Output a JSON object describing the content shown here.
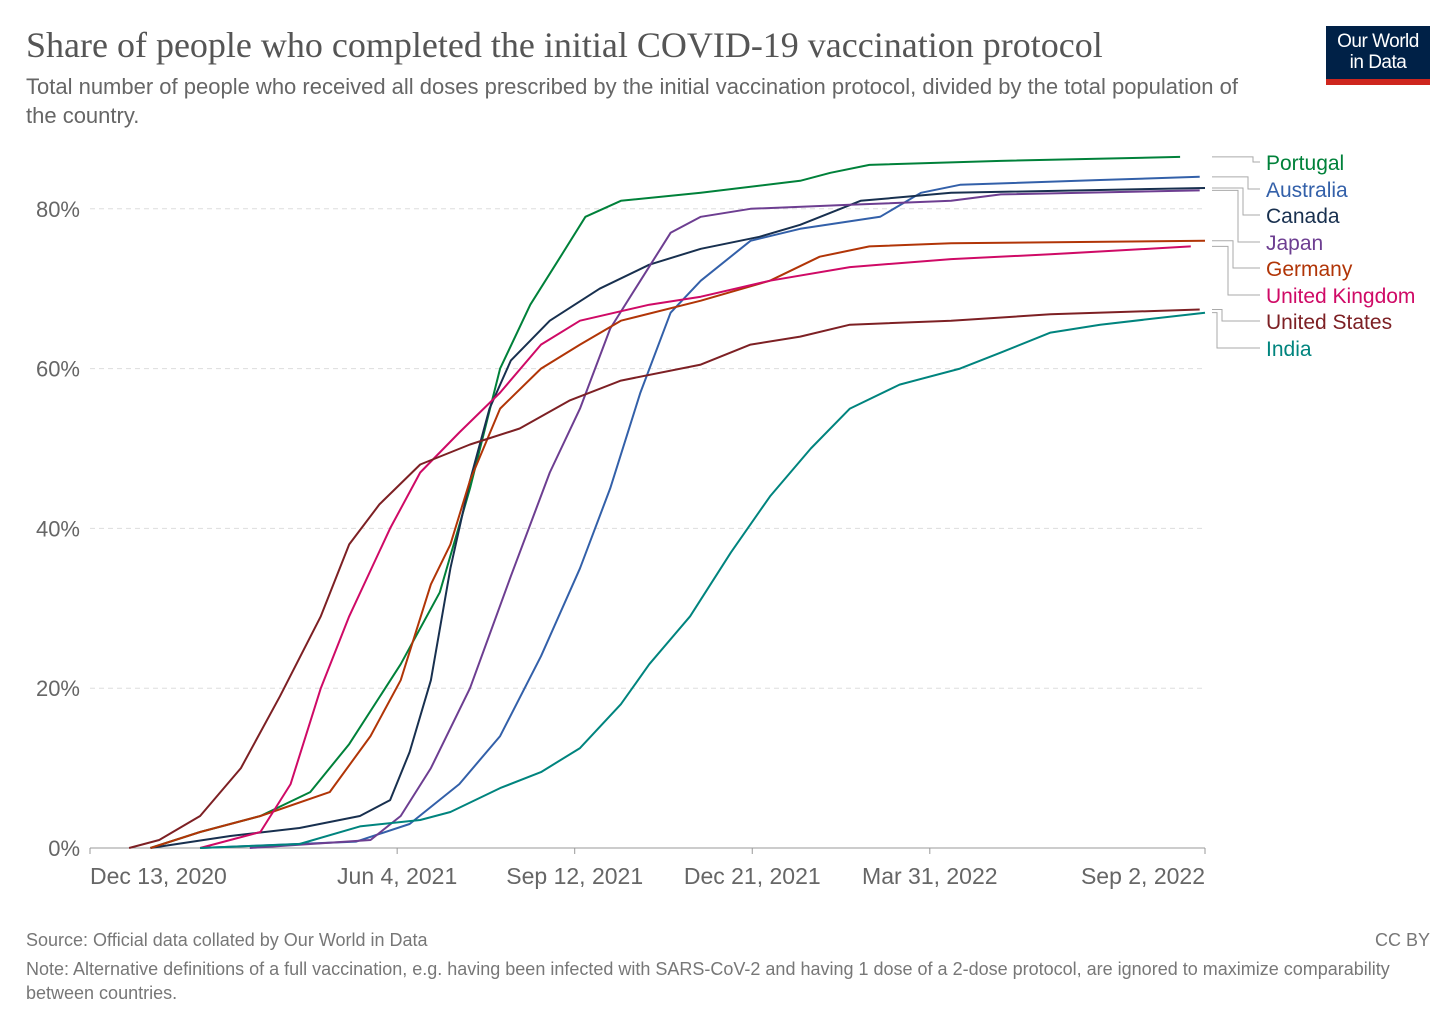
{
  "chart_data": {
    "type": "line",
    "title": "Share of people who completed the initial COVID-19 vaccination protocol",
    "subtitle": "Total number of people who received all doses prescribed by the initial vaccination protocol, divided by the total population of the country.",
    "xlabel": "",
    "ylabel": "",
    "x_unit": "days since Dec 13, 2020",
    "xlim": [
      0,
      628
    ],
    "ylim": [
      0,
      86
    ],
    "grid": true,
    "legend": "right (line-end labels)",
    "x_ticks": [
      {
        "value": 0,
        "label": "Dec 13, 2020"
      },
      {
        "value": 173,
        "label": "Jun 4, 2021"
      },
      {
        "value": 273,
        "label": "Sep 12, 2021"
      },
      {
        "value": 373,
        "label": "Dec 21, 2021"
      },
      {
        "value": 473,
        "label": "Mar 31, 2022"
      },
      {
        "value": 628,
        "label": "Sep 2, 2022"
      }
    ],
    "y_ticks": [
      {
        "value": 0,
        "label": "0%"
      },
      {
        "value": 20,
        "label": "20%"
      },
      {
        "value": 40,
        "label": "40%"
      },
      {
        "value": 60,
        "label": "60%"
      },
      {
        "value": 80,
        "label": "80%"
      }
    ],
    "series": [
      {
        "name": "Portugal",
        "color": "#00813a",
        "label_value": 86.5,
        "points": [
          [
            34,
            0
          ],
          [
            62,
            2
          ],
          [
            96,
            4
          ],
          [
            124,
            7
          ],
          [
            146,
            13
          ],
          [
            175,
            23
          ],
          [
            197,
            32
          ],
          [
            214,
            45
          ],
          [
            231,
            60
          ],
          [
            248,
            68
          ],
          [
            265,
            74
          ],
          [
            279,
            79
          ],
          [
            299,
            81
          ],
          [
            344,
            82
          ],
          [
            400,
            83.5
          ],
          [
            417,
            84.5
          ],
          [
            439,
            85.5
          ],
          [
            513,
            86
          ],
          [
            614,
            86.5
          ]
        ]
      },
      {
        "name": "Australia",
        "color": "#3360a9",
        "label_value": 84,
        "points": [
          [
            62,
            0
          ],
          [
            150,
            0.8
          ],
          [
            180,
            3
          ],
          [
            208,
            8
          ],
          [
            231,
            14
          ],
          [
            254,
            24
          ],
          [
            276,
            35
          ],
          [
            293,
            45
          ],
          [
            310,
            57
          ],
          [
            327,
            67
          ],
          [
            344,
            71
          ],
          [
            372,
            76
          ],
          [
            400,
            77.5
          ],
          [
            445,
            79
          ],
          [
            468,
            82
          ],
          [
            490,
            83
          ],
          [
            569,
            83.6
          ],
          [
            625,
            84
          ]
        ]
      },
      {
        "name": "Canada",
        "color": "#18304f",
        "label_value": 82.6,
        "points": [
          [
            34,
            0
          ],
          [
            79,
            1.5
          ],
          [
            118,
            2.5
          ],
          [
            152,
            4
          ],
          [
            169,
            6
          ],
          [
            180,
            12
          ],
          [
            192,
            21
          ],
          [
            203,
            35
          ],
          [
            214,
            46
          ],
          [
            225,
            55
          ],
          [
            237,
            61
          ],
          [
            259,
            66
          ],
          [
            287,
            70
          ],
          [
            315,
            73
          ],
          [
            344,
            75
          ],
          [
            377,
            76.5
          ],
          [
            400,
            78
          ],
          [
            434,
            81
          ],
          [
            485,
            82
          ],
          [
            628,
            82.6
          ]
        ]
      },
      {
        "name": "Japan",
        "color": "#6d3e91",
        "label_value": 82.3,
        "points": [
          [
            90,
            0
          ],
          [
            158,
            1
          ],
          [
            175,
            4
          ],
          [
            192,
            10
          ],
          [
            214,
            20
          ],
          [
            237,
            34
          ],
          [
            259,
            47
          ],
          [
            276,
            55
          ],
          [
            293,
            65
          ],
          [
            310,
            71
          ],
          [
            327,
            77
          ],
          [
            344,
            79
          ],
          [
            372,
            80
          ],
          [
            428,
            80.5
          ],
          [
            485,
            81
          ],
          [
            513,
            81.8
          ],
          [
            625,
            82.3
          ]
        ]
      },
      {
        "name": "Germany",
        "color": "#b13507",
        "label_value": 76,
        "points": [
          [
            34,
            0
          ],
          [
            62,
            2
          ],
          [
            96,
            4
          ],
          [
            135,
            7
          ],
          [
            158,
            14
          ],
          [
            175,
            21
          ],
          [
            192,
            33
          ],
          [
            203,
            38
          ],
          [
            214,
            46
          ],
          [
            231,
            55
          ],
          [
            254,
            60
          ],
          [
            276,
            63
          ],
          [
            299,
            66
          ],
          [
            344,
            68.5
          ],
          [
            383,
            71
          ],
          [
            411,
            74
          ],
          [
            439,
            75.3
          ],
          [
            485,
            75.7
          ],
          [
            628,
            76
          ]
        ]
      },
      {
        "name": "United Kingdom",
        "color": "#cf0a66",
        "label_value": 75.3,
        "points": [
          [
            62,
            0
          ],
          [
            96,
            2
          ],
          [
            113,
            8
          ],
          [
            130,
            20
          ],
          [
            146,
            29
          ],
          [
            169,
            40
          ],
          [
            186,
            47
          ],
          [
            208,
            52
          ],
          [
            231,
            57
          ],
          [
            254,
            63
          ],
          [
            276,
            66
          ],
          [
            315,
            68
          ],
          [
            344,
            69
          ],
          [
            383,
            71
          ],
          [
            428,
            72.7
          ],
          [
            485,
            73.7
          ],
          [
            541,
            74.3
          ],
          [
            620,
            75.3
          ]
        ]
      },
      {
        "name": "United States",
        "color": "#7d2024",
        "label_value": 67.4,
        "points": [
          [
            22,
            0
          ],
          [
            39,
            1
          ],
          [
            62,
            4
          ],
          [
            85,
            10
          ],
          [
            107,
            19
          ],
          [
            130,
            29
          ],
          [
            146,
            38
          ],
          [
            163,
            43
          ],
          [
            186,
            48
          ],
          [
            214,
            50.5
          ],
          [
            242,
            52.5
          ],
          [
            270,
            56
          ],
          [
            299,
            58.5
          ],
          [
            344,
            60.5
          ],
          [
            372,
            63
          ],
          [
            400,
            64
          ],
          [
            428,
            65.5
          ],
          [
            485,
            66
          ],
          [
            541,
            66.8
          ],
          [
            625,
            67.4
          ]
        ]
      },
      {
        "name": "India",
        "color": "#00847e",
        "label_value": 67,
        "points": [
          [
            62,
            0
          ],
          [
            118,
            0.5
          ],
          [
            152,
            2.7
          ],
          [
            186,
            3.5
          ],
          [
            203,
            4.5
          ],
          [
            231,
            7.5
          ],
          [
            254,
            9.5
          ],
          [
            276,
            12.5
          ],
          [
            299,
            18
          ],
          [
            315,
            23
          ],
          [
            338,
            29
          ],
          [
            361,
            37
          ],
          [
            383,
            44
          ],
          [
            406,
            50
          ],
          [
            428,
            55
          ],
          [
            456,
            58
          ],
          [
            490,
            60
          ],
          [
            513,
            62
          ],
          [
            541,
            64.5
          ],
          [
            569,
            65.5
          ],
          [
            628,
            67
          ]
        ]
      }
    ]
  },
  "logo": {
    "line1": "Our World",
    "line2": "in Data"
  },
  "footer": {
    "source": "Source: Official data collated by Our World in Data",
    "license": "CC BY",
    "note": "Note: Alternative definitions of a full vaccination, e.g. having been infected with SARS-CoV-2 and having 1 dose of a 2-dose protocol, are ignored to maximize comparability between countries."
  }
}
